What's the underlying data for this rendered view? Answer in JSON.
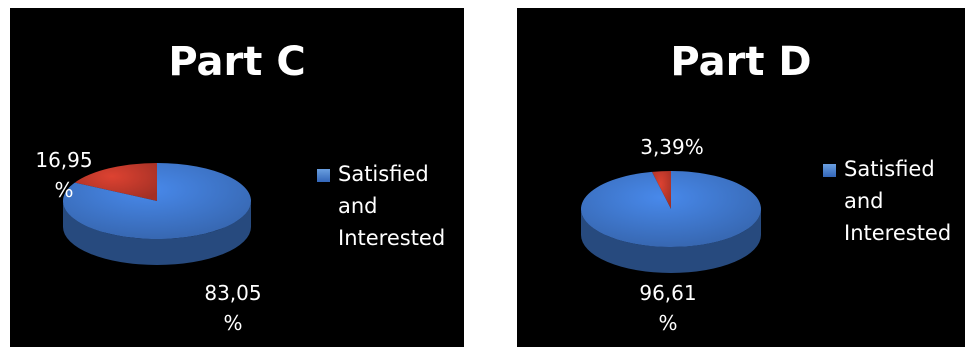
{
  "chart_data": [
    {
      "type": "pie",
      "title": "Part C",
      "legend": {
        "entries": [
          "Satisfied and Interested"
        ],
        "placement": "right"
      },
      "slices": [
        {
          "label_text": "83,05 %",
          "value": 83.05,
          "color": "#3f77cc"
        },
        {
          "label_text": "16,95 %",
          "value": 16.95,
          "color": "#c0392b"
        }
      ]
    },
    {
      "type": "pie",
      "title": "Part D",
      "legend": {
        "entries": [
          "Satisfied and Interested"
        ],
        "placement": "right"
      },
      "slices": [
        {
          "label_text": "96,61 %",
          "value": 96.61,
          "color": "#3f77cc"
        },
        {
          "label_text": "3,39%",
          "value": 3.39,
          "color": "#c0392b"
        }
      ]
    }
  ]
}
